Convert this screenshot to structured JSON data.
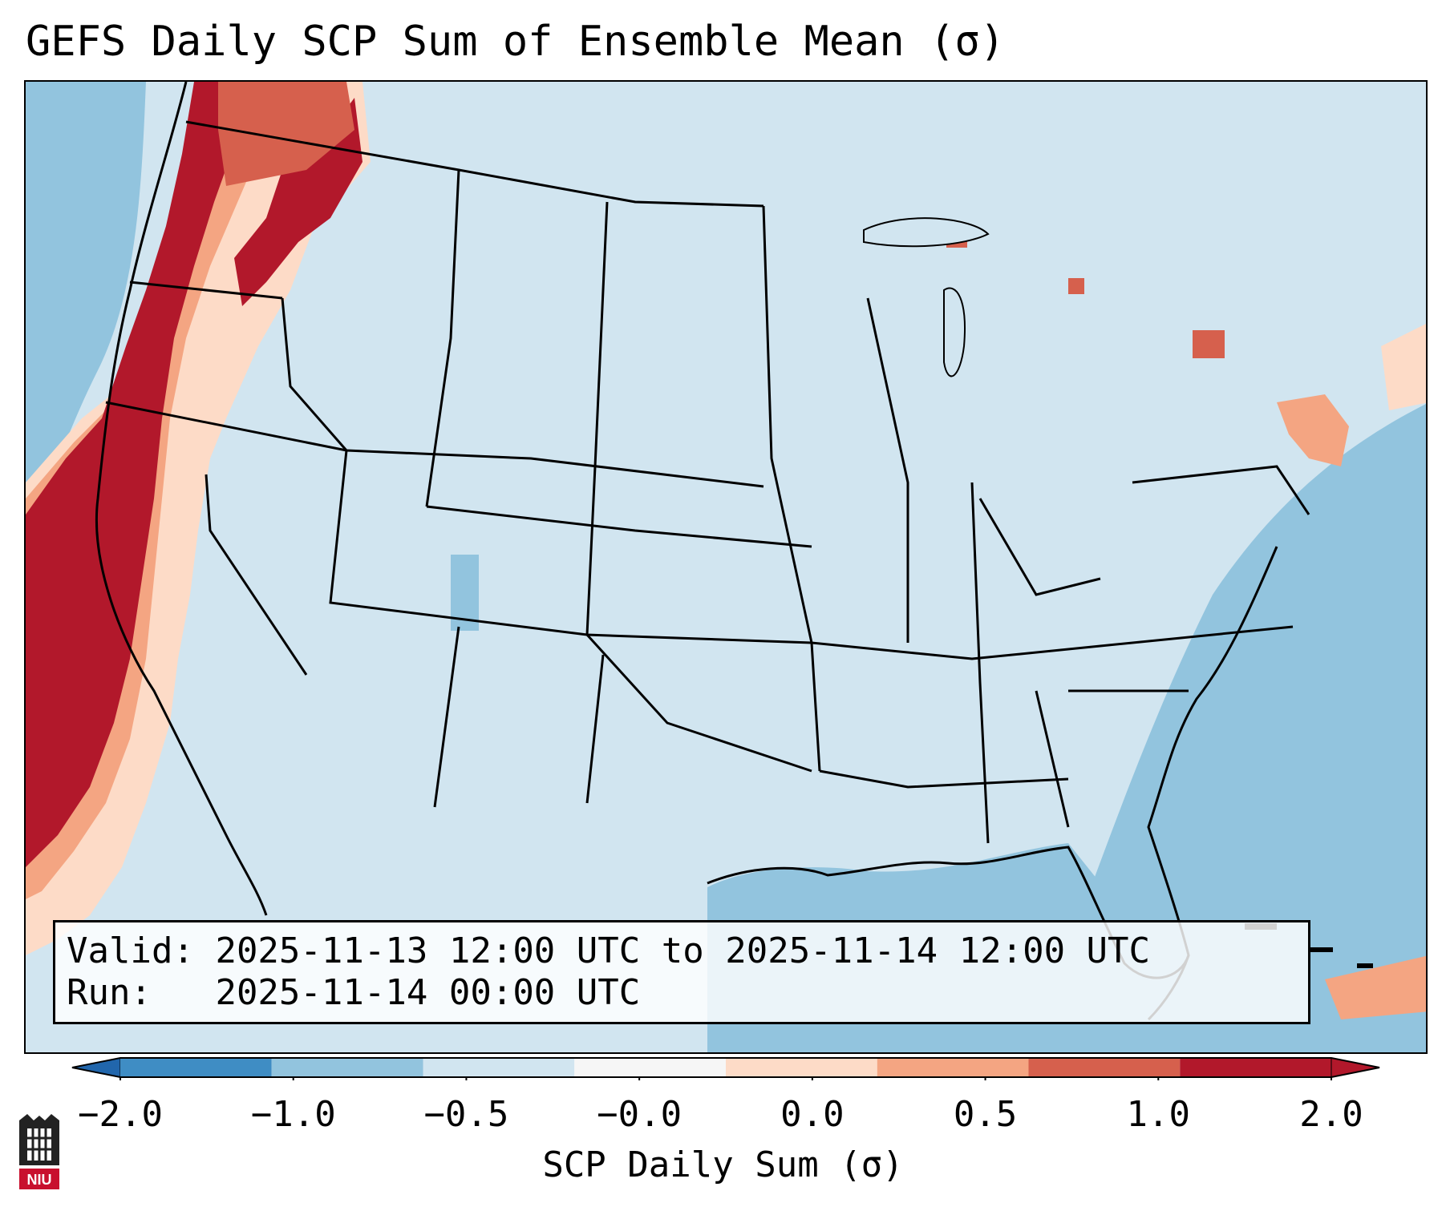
{
  "title": "GEFS Daily SCP Sum of Ensemble Mean (σ)",
  "info": {
    "valid_label": "Valid:",
    "valid_value": "2025-11-13 12:00 UTC to 2025-11-14 12:00 UTC",
    "run_label": "Run:",
    "run_value": "2025-11-14 00:00 UTC"
  },
  "colorbar": {
    "label": "SCP Daily Sum (σ)",
    "ticks": [
      "−2.0",
      "−1.0",
      "−0.5",
      "−0.0",
      "0.0",
      "0.5",
      "1.0",
      "2.0"
    ],
    "colors": [
      "#3f8dc4",
      "#92c4de",
      "#d1e5f0",
      "#f6f6f6",
      "#fddbc7",
      "#f4a582",
      "#d6604d",
      "#b2182b"
    ]
  },
  "logo": {
    "text": "NIU"
  }
}
